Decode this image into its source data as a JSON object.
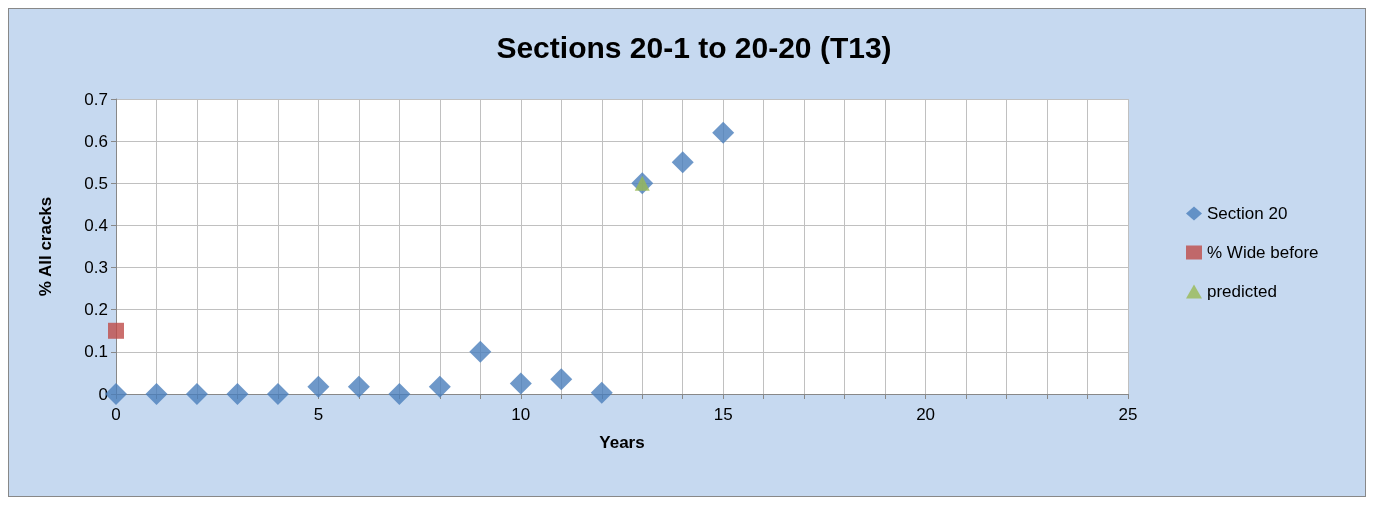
{
  "chart_data": {
    "type": "scatter",
    "title": "Sections 20-1 to 20-20 (T13)",
    "xlabel": "Years",
    "ylabel": "% All cracks",
    "series": [
      {
        "name": "Section 20",
        "color": "#4a7ebb",
        "marker": "diamond",
        "x": [
          0,
          1,
          2,
          3,
          4,
          5,
          6,
          7,
          8,
          9,
          10,
          11,
          12,
          13,
          14,
          15
        ],
        "values": [
          0,
          0,
          0,
          0,
          0,
          0.017,
          0.017,
          0,
          0.017,
          0.1,
          0.025,
          0.035,
          0.003,
          0.5,
          0.55,
          0.62
        ]
      },
      {
        "name": "% Wide before",
        "color": "#be4b48",
        "marker": "square",
        "x": [
          0
        ],
        "values": [
          0.15
        ]
      },
      {
        "name": "predicted",
        "color": "#98b954",
        "marker": "triangle",
        "x": [
          13
        ],
        "values": [
          0.5
        ]
      }
    ],
    "xlim": [
      0,
      25
    ],
    "xticks": [
      0,
      {
        "value": 1,
        "label": null
      },
      {
        "value": 2,
        "label": null
      },
      {
        "value": 3,
        "label": null
      },
      {
        "value": 4,
        "label": null
      },
      5,
      {
        "value": 6,
        "label": null
      },
      {
        "value": 7,
        "label": null
      },
      {
        "value": 8,
        "label": null
      },
      {
        "value": 9,
        "label": null
      },
      10,
      {
        "value": 11,
        "label": null
      },
      {
        "value": 12,
        "label": null
      },
      {
        "value": 13,
        "label": null
      },
      {
        "value": 14,
        "label": null
      },
      15,
      {
        "value": 16,
        "label": null
      },
      {
        "value": 17,
        "label": null
      },
      {
        "value": 18,
        "label": null
      },
      {
        "value": 19,
        "label": null
      },
      20,
      {
        "value": 21,
        "label": null
      },
      {
        "value": 22,
        "label": null
      },
      {
        "value": 23,
        "label": null
      },
      {
        "value": 24,
        "label": null
      },
      25
    ],
    "ylim": [
      0,
      0.7
    ],
    "yticks": [
      0,
      0.1,
      0.2,
      0.3,
      0.4,
      0.5,
      0.6,
      0.7
    ],
    "grid": true,
    "legend": "right"
  }
}
